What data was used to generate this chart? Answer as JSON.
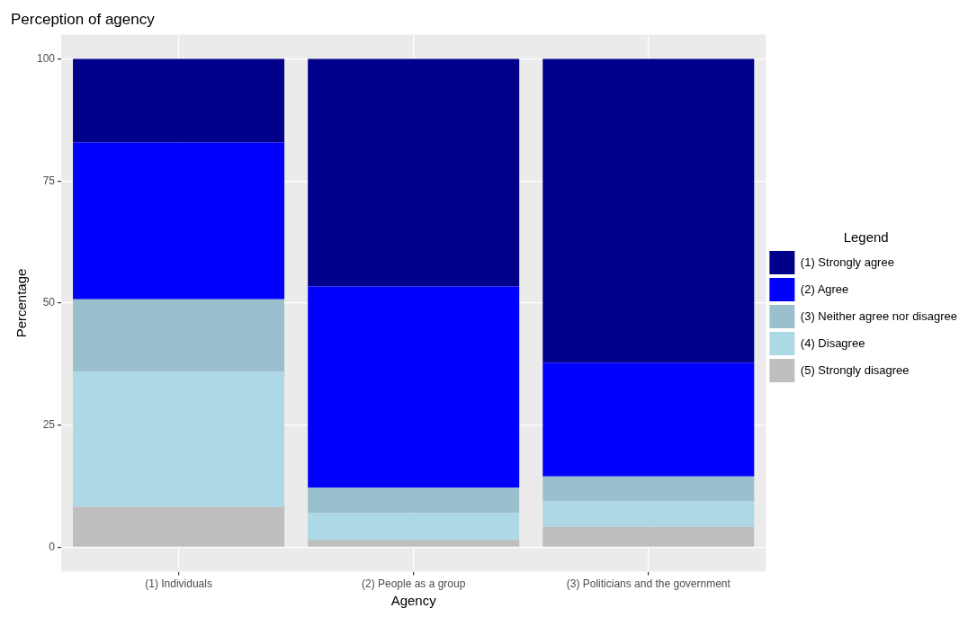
{
  "chart_data": {
    "type": "bar",
    "title": "Perception of agency",
    "xlabel": "Agency",
    "ylabel": "Percentage",
    "legend_title": "Legend",
    "categories": [
      "(1) Individuals",
      "(2) People as a group",
      "(3) Politicians and the government"
    ],
    "stacked": true,
    "series": [
      {
        "name": "(5) Strongly disagree",
        "color": "#bebebe",
        "values": [
          8.3,
          1.5,
          4.2
        ]
      },
      {
        "name": "(4) Disagree",
        "color": "#add8e6",
        "values": [
          27.6,
          5.5,
          5.2
        ]
      },
      {
        "name": "(3) Neither agree nor disagree",
        "color": "#9ac0cd",
        "values": [
          14.9,
          5.2,
          5.1
        ]
      },
      {
        "name": "(2) Agree",
        "color": "#0000ff",
        "values": [
          32.1,
          41.2,
          23.3
        ]
      },
      {
        "name": "(1) Strongly agree",
        "color": "#00008b",
        "values": [
          17.1,
          46.6,
          62.2
        ]
      }
    ],
    "ylim": [
      -5,
      105
    ],
    "yticks": [
      0,
      25,
      50,
      75,
      100
    ],
    "grid": true,
    "legend": "right"
  }
}
